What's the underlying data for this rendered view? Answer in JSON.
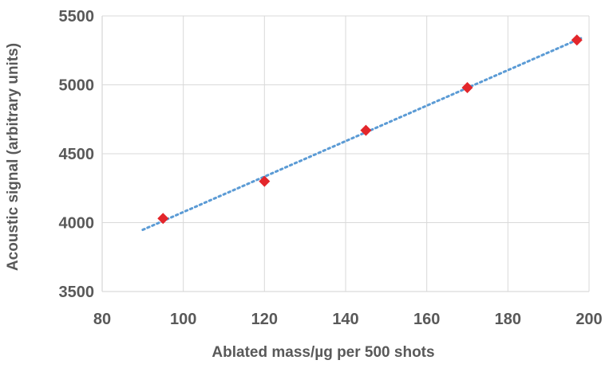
{
  "chart_data": {
    "type": "scatter",
    "title": "",
    "xlabel": "Ablated mass/µg per 500 shots",
    "ylabel": "Acoustic signal (arbitrary units)",
    "xlim": [
      80,
      200
    ],
    "ylim": [
      3500,
      5500
    ],
    "xticks": [
      80,
      100,
      120,
      140,
      160,
      180,
      200
    ],
    "yticks": [
      3500,
      4000,
      4500,
      5000,
      5500
    ],
    "grid": true,
    "legend": "none",
    "series": [
      {
        "x": [
          95,
          120,
          145,
          170,
          197
        ],
        "y": [
          4030,
          4300,
          4670,
          4980,
          5325
        ],
        "color": "#e3262b",
        "marker": "diamond"
      }
    ],
    "trendline": {
      "type": "linear",
      "x_range": [
        90,
        198
      ],
      "color": "#5b9bd5",
      "style": "dotted"
    }
  }
}
